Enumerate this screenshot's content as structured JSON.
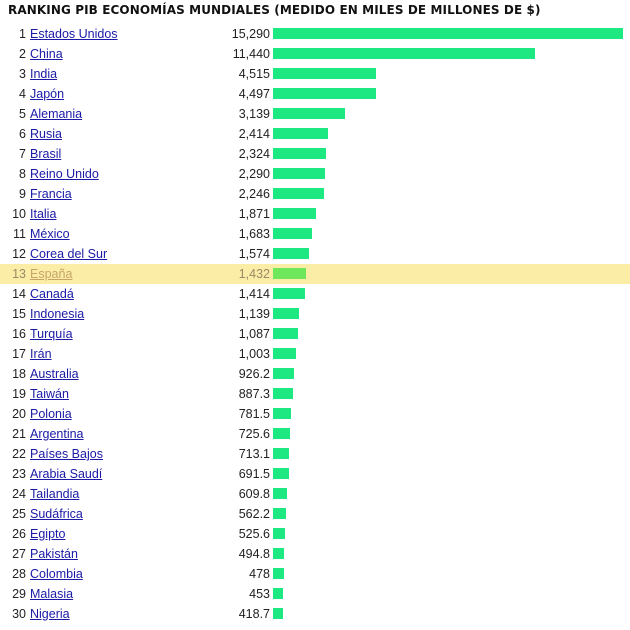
{
  "title": "RANKING PIB ECONOMÍAS MUNDIALES (MEDIDO EN MILES DE MILLONES DE $)",
  "colors": {
    "bar": "#1ee882",
    "highlight_bar": "#6ee85a",
    "highlight_row": "#fbeda6",
    "link": "#1a1aa6"
  },
  "chart_data": {
    "type": "bar",
    "orientation": "horizontal",
    "title": "RANKING PIB ECONOMÍAS MUNDIALES (MEDIDO EN MILES DE MILLONES DE $)",
    "highlighted": "España",
    "xmax": 15290,
    "rows": [
      {
        "rank": "1",
        "name": "Estados Unidos",
        "value": 15290,
        "label": "15,290"
      },
      {
        "rank": "2",
        "name": "China",
        "value": 11440,
        "label": "11,440"
      },
      {
        "rank": "3",
        "name": "India",
        "value": 4515,
        "label": "4,515"
      },
      {
        "rank": "4",
        "name": "Japón",
        "value": 4497,
        "label": "4,497"
      },
      {
        "rank": "5",
        "name": "Alemania",
        "value": 3139,
        "label": "3,139"
      },
      {
        "rank": "6",
        "name": "Rusia",
        "value": 2414,
        "label": "2,414"
      },
      {
        "rank": "7",
        "name": "Brasil",
        "value": 2324,
        "label": "2,324"
      },
      {
        "rank": "8",
        "name": "Reino Unido",
        "value": 2290,
        "label": "2,290"
      },
      {
        "rank": "9",
        "name": "Francia",
        "value": 2246,
        "label": "2,246"
      },
      {
        "rank": "10",
        "name": "Italia",
        "value": 1871,
        "label": "1,871"
      },
      {
        "rank": "11",
        "name": "México",
        "value": 1683,
        "label": "1,683"
      },
      {
        "rank": "12",
        "name": "Corea del Sur",
        "value": 1574,
        "label": "1,574"
      },
      {
        "rank": "13",
        "name": "España",
        "value": 1432,
        "label": "1,432"
      },
      {
        "rank": "14",
        "name": "Canadá",
        "value": 1414,
        "label": "1,414"
      },
      {
        "rank": "15",
        "name": "Indonesia",
        "value": 1139,
        "label": "1,139"
      },
      {
        "rank": "16",
        "name": "Turquía",
        "value": 1087,
        "label": "1,087"
      },
      {
        "rank": "17",
        "name": "Irán",
        "value": 1003,
        "label": "1,003"
      },
      {
        "rank": "18",
        "name": "Australia",
        "value": 926.2,
        "label": "926.2"
      },
      {
        "rank": "19",
        "name": "Taiwán",
        "value": 887.3,
        "label": "887.3"
      },
      {
        "rank": "20",
        "name": "Polonia",
        "value": 781.5,
        "label": "781.5"
      },
      {
        "rank": "21",
        "name": "Argentina",
        "value": 725.6,
        "label": "725.6"
      },
      {
        "rank": "22",
        "name": "Países Bajos",
        "value": 713.1,
        "label": "713.1"
      },
      {
        "rank": "23",
        "name": "Arabia Saudí",
        "value": 691.5,
        "label": "691.5"
      },
      {
        "rank": "24",
        "name": "Tailandia",
        "value": 609.8,
        "label": "609.8"
      },
      {
        "rank": "25",
        "name": "Sudáfrica",
        "value": 562.2,
        "label": "562.2"
      },
      {
        "rank": "26",
        "name": "Egipto",
        "value": 525.6,
        "label": "525.6"
      },
      {
        "rank": "27",
        "name": "Pakistán",
        "value": 494.8,
        "label": "494.8"
      },
      {
        "rank": "28",
        "name": "Colombia",
        "value": 478,
        "label": "478"
      },
      {
        "rank": "29",
        "name": "Malasia",
        "value": 453,
        "label": "453"
      },
      {
        "rank": "30",
        "name": "Nigeria",
        "value": 418.7,
        "label": "418.7"
      }
    ]
  }
}
